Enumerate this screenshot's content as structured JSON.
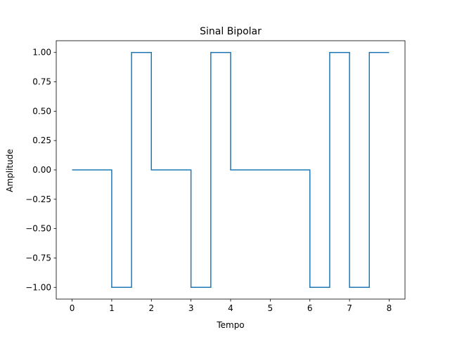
{
  "chart_data": {
    "type": "line",
    "title": "Sinal Bipolar",
    "xlabel": "Tempo",
    "ylabel": "Amplitude",
    "xlim": [
      -0.4,
      8.4
    ],
    "ylim": [
      -1.1,
      1.1
    ],
    "x_ticks": [
      0,
      1,
      2,
      3,
      4,
      5,
      6,
      7,
      8
    ],
    "x_tick_labels": [
      "0",
      "1",
      "2",
      "3",
      "4",
      "5",
      "6",
      "7",
      "8"
    ],
    "y_ticks": [
      1.0,
      0.75,
      0.5,
      0.25,
      0.0,
      -0.25,
      -0.5,
      -0.75,
      -1.0
    ],
    "y_tick_labels": [
      "1.00",
      "0.75",
      "0.50",
      "0.25",
      "0.00",
      "−0.25",
      "−0.50",
      "−0.75",
      "−1.00"
    ],
    "grid": false,
    "series": [
      {
        "color": "#1f77b4",
        "step": "post",
        "x": [
          0,
          0.5,
          1,
          1.5,
          2,
          2.5,
          3,
          3.5,
          4,
          4.5,
          5,
          5.5,
          6,
          6.5,
          7,
          7.5,
          8
        ],
        "y": [
          0,
          0,
          -1,
          1,
          0,
          0,
          -1,
          1,
          0,
          0,
          0,
          0,
          -1,
          1,
          -1,
          1,
          1
        ]
      }
    ]
  }
}
